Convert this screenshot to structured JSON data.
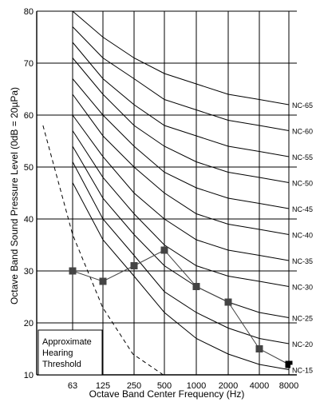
{
  "chart_data": {
    "type": "line",
    "xlabel": "Octave Band Center Frequency (Hz)",
    "ylabel": "Octave Band Sound Pressure Level (0dB = 20µPa)",
    "x": [
      63,
      125,
      250,
      500,
      1000,
      2000,
      4000,
      8000
    ],
    "xtick_labels": [
      "63",
      "125",
      "250",
      "500",
      "1000",
      "2000",
      "4000",
      "8000"
    ],
    "ylim": [
      10,
      80
    ],
    "yticks": [
      10,
      20,
      30,
      40,
      50,
      60,
      70,
      80
    ],
    "grid": true,
    "series": [
      {
        "name": "NC-15",
        "values": [
          47,
          36,
          29,
          22,
          17,
          14,
          12,
          11
        ]
      },
      {
        "name": "NC-20",
        "values": [
          51,
          40,
          33,
          26,
          22,
          19,
          17,
          16
        ]
      },
      {
        "name": "NC-25",
        "values": [
          54,
          44,
          37,
          31,
          27,
          24,
          22,
          21
        ]
      },
      {
        "name": "NC-30",
        "values": [
          57,
          48,
          41,
          35,
          31,
          29,
          28,
          27
        ]
      },
      {
        "name": "NC-35",
        "values": [
          60,
          52,
          45,
          40,
          36,
          34,
          33,
          32
        ]
      },
      {
        "name": "NC-40",
        "values": [
          64,
          56,
          50,
          45,
          41,
          39,
          38,
          37
        ]
      },
      {
        "name": "NC-45",
        "values": [
          67,
          60,
          54,
          49,
          46,
          44,
          43,
          42
        ]
      },
      {
        "name": "NC-50",
        "values": [
          71,
          64,
          58,
          54,
          51,
          49,
          48,
          47
        ]
      },
      {
        "name": "NC-55",
        "values": [
          74,
          67,
          62,
          58,
          56,
          54,
          53,
          52
        ]
      },
      {
        "name": "NC-60",
        "values": [
          77,
          71,
          67,
          63,
          61,
          59,
          58,
          57
        ]
      },
      {
        "name": "NC-65",
        "values": [
          80,
          75,
          71,
          68,
          66,
          64,
          63,
          62
        ]
      }
    ],
    "hearing_threshold": {
      "label": "Approximate Hearing Threshold",
      "label_lines": [
        "Approximate",
        "Hearing",
        "Threshold"
      ],
      "points": [
        [
          32,
          58
        ],
        [
          63,
          37
        ],
        [
          125,
          23
        ],
        [
          250,
          14
        ],
        [
          500,
          10
        ]
      ]
    },
    "measured": {
      "values": [
        30,
        28,
        31,
        34,
        27,
        24,
        15,
        12
      ]
    },
    "colors": {
      "grid": "#000000",
      "curves": "#000000",
      "measured_marker": "#444444",
      "measured_line": "#444444",
      "threshold": "#000000"
    }
  }
}
